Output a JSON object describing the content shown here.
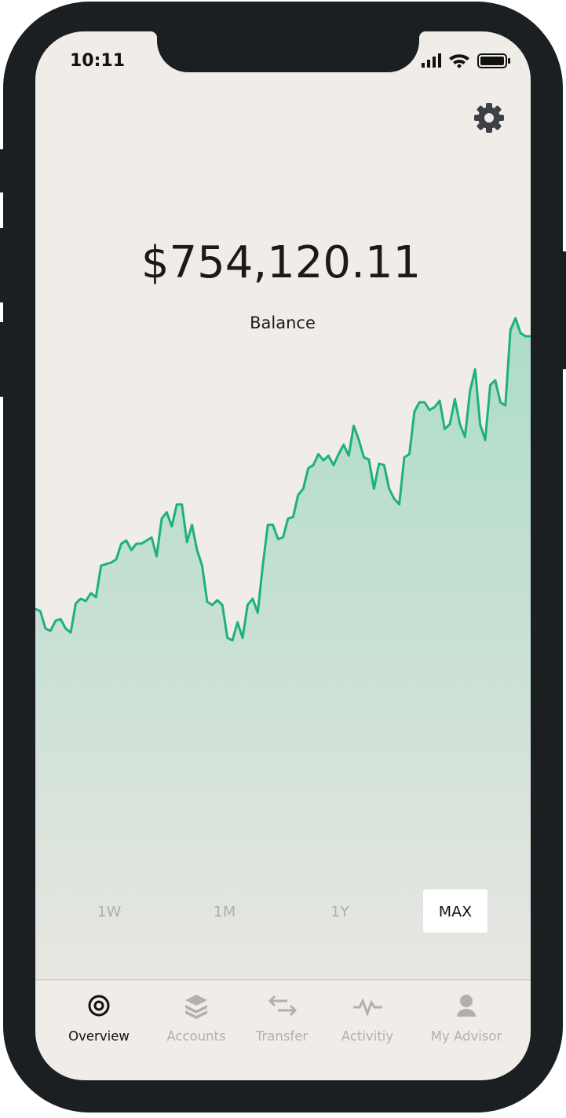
{
  "status_bar": {
    "time": "10:11"
  },
  "balance": {
    "amount": "$754,120.11",
    "label": "Balance"
  },
  "chart_data": {
    "type": "line",
    "color": "#1eb07f",
    "values": [
      125,
      122,
      100,
      97,
      110,
      112,
      100,
      95,
      132,
      138,
      135,
      145,
      140,
      180,
      182,
      184,
      188,
      208,
      212,
      200,
      208,
      208,
      212,
      216,
      192,
      240,
      248,
      230,
      258,
      258,
      210,
      232,
      200,
      180,
      134,
      130,
      136,
      130,
      88,
      85,
      108,
      88,
      130,
      138,
      120,
      180,
      232,
      232,
      214,
      216,
      240,
      242,
      270,
      278,
      304,
      308,
      322,
      314,
      320,
      308,
      322,
      334,
      320,
      358,
      340,
      318,
      315,
      278,
      310,
      308,
      278,
      265,
      258,
      318,
      322,
      376,
      388,
      388,
      378,
      382,
      390,
      354,
      360,
      392,
      360,
      344,
      402,
      430,
      360,
      340,
      410,
      416,
      388,
      384,
      480,
      495,
      476,
      472,
      472
    ],
    "ylim": [
      0,
      500
    ]
  },
  "ranges": {
    "items": [
      "1W",
      "1M",
      "1Y",
      "MAX"
    ],
    "selected": "MAX"
  },
  "nav": {
    "items": [
      "Overview",
      "Accounts",
      "Transfer",
      "Activitiy",
      "My Advisor"
    ],
    "active": "Overview"
  }
}
